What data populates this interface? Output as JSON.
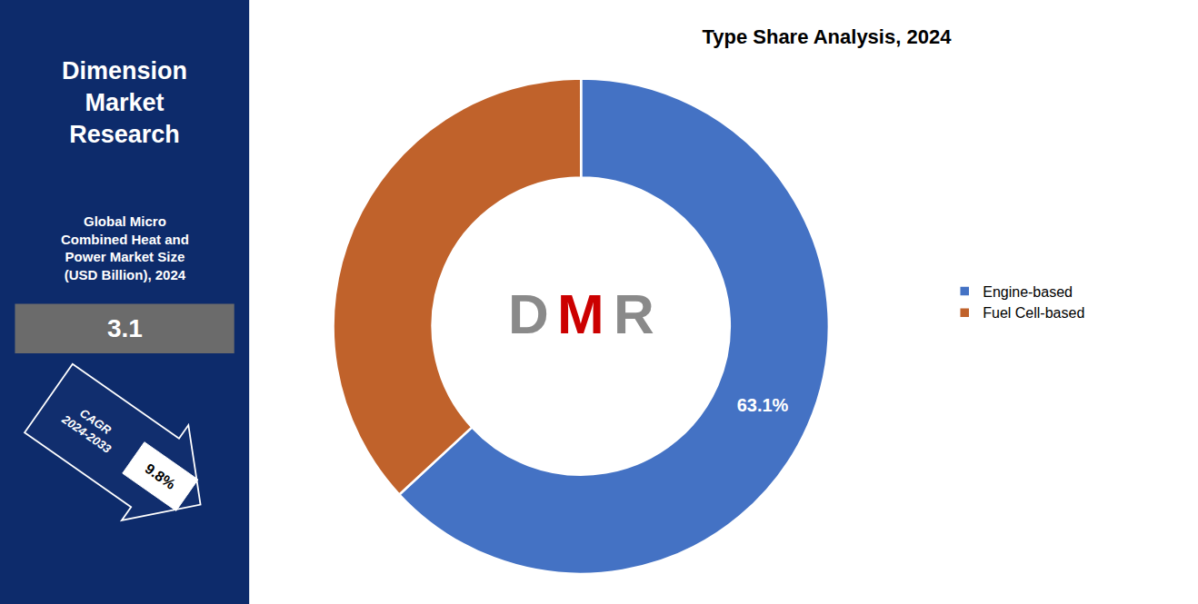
{
  "chart_data": {
    "type": "donut",
    "title": "Type Share Analysis, 2024",
    "categories": [
      "Engine-based",
      "Fuel Cell-based"
    ],
    "values": [
      63.1,
      36.9
    ],
    "colors": [
      "#4472C4",
      "#C0622B"
    ],
    "data_labels": true,
    "value_labels": [
      "63.1%",
      null
    ],
    "legend": "right",
    "annotations": [
      {
        "text": "Dimension\nMarket\nResearch"
      },
      {
        "text": "Global Micro\nCombined Heat and\nPower Market Size\n(USD Billion), 2024"
      },
      {
        "text": "3.1"
      },
      {
        "text": "CAGR\n2024-2033"
      },
      {
        "text": "9.8%"
      },
      {
        "text": "D",
        "color": "#8A8A8A"
      },
      {
        "text": "M",
        "color": "#CC0000"
      },
      {
        "text": "R",
        "color": "#8A8A8A"
      }
    ]
  }
}
